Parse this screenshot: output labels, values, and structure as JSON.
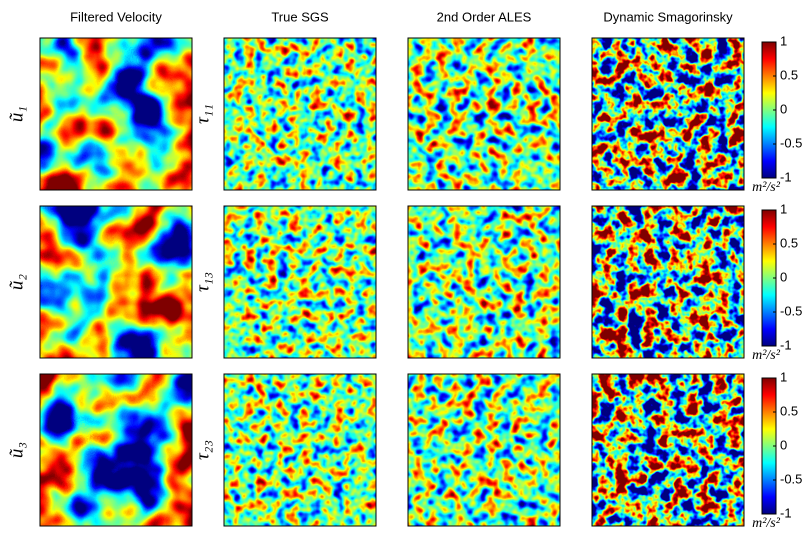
{
  "columns": [
    "Filtered Velocity",
    "True SGS",
    "2nd Order ALES",
    "Dynamic Smagorinsky"
  ],
  "rows": [
    {
      "velocity_label": "ũ₁",
      "stress_label": "τ₁₁"
    },
    {
      "velocity_label": "ũ₂",
      "stress_label": "τ₁₃"
    },
    {
      "velocity_label": "ũ₃",
      "stress_label": "τ₂₃"
    }
  ],
  "colorbar": {
    "lim": [
      -1,
      1
    ],
    "ticks": [
      1,
      0.5,
      0,
      -0.5,
      -1
    ],
    "unit": "m²/s²"
  }
}
